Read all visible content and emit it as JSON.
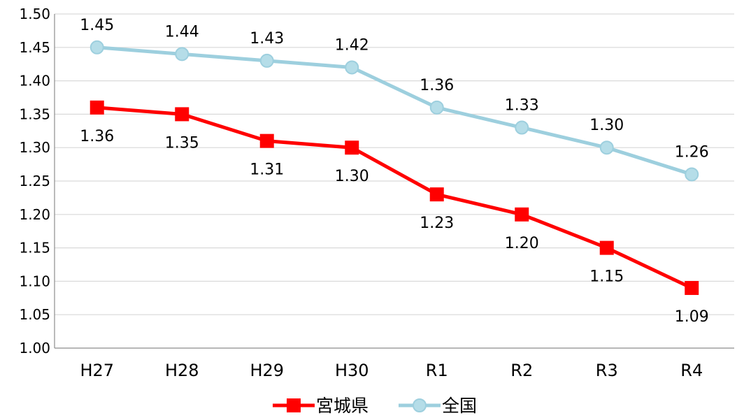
{
  "chart_data": {
    "type": "line",
    "categories": [
      "H27",
      "H28",
      "H29",
      "H30",
      "R1",
      "R2",
      "R3",
      "R4"
    ],
    "ylim": [
      1.0,
      1.5
    ],
    "yticks": [
      1.0,
      1.05,
      1.1,
      1.15,
      1.2,
      1.25,
      1.3,
      1.35,
      1.4,
      1.45,
      1.5
    ],
    "grid": true,
    "legend_position": "bottom",
    "series": [
      {
        "name": "宮城県",
        "color": "#ff0000",
        "marker": "square",
        "label_position": "below",
        "values": [
          1.36,
          1.35,
          1.31,
          1.3,
          1.23,
          1.2,
          1.15,
          1.09
        ]
      },
      {
        "name": "全国",
        "color": "#9dcfde",
        "marker_fill": "#b5dde8",
        "marker": "circle",
        "label_position": "above",
        "values": [
          1.45,
          1.44,
          1.43,
          1.42,
          1.36,
          1.33,
          1.3,
          1.26
        ]
      }
    ]
  }
}
